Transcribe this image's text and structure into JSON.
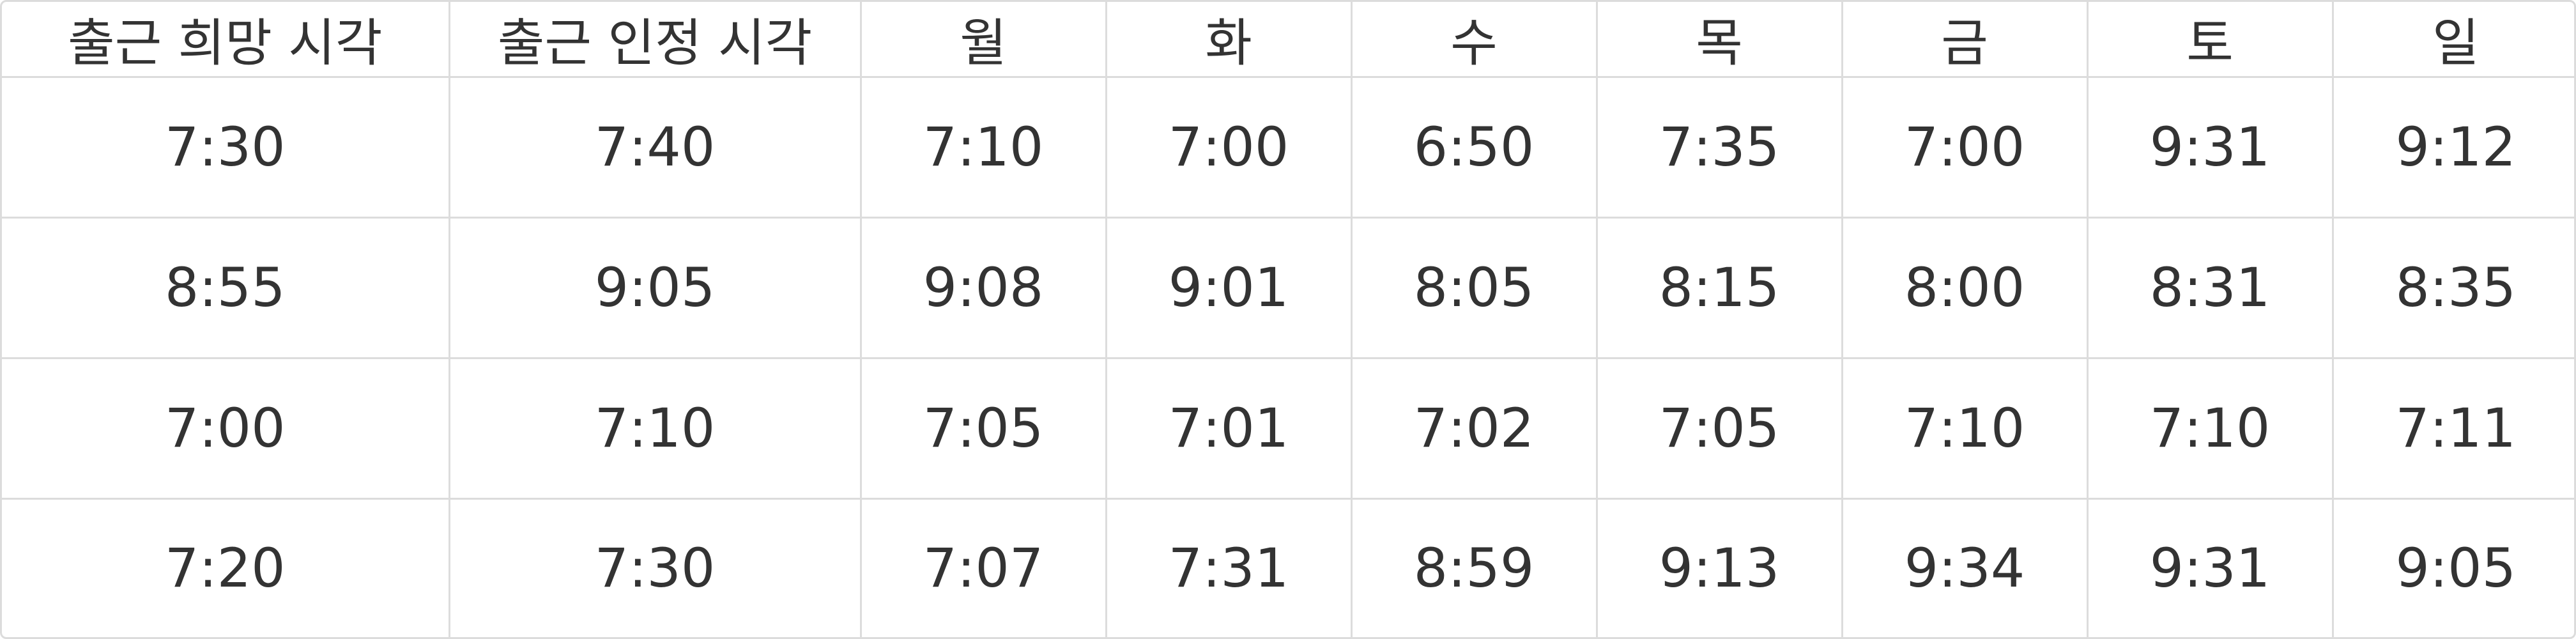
{
  "table": {
    "headers": [
      "출근 희망 시각",
      "출근 인정 시각",
      "월",
      "화",
      "수",
      "목",
      "금",
      "토",
      "일"
    ],
    "rows": [
      [
        "7:30",
        "7:40",
        "7:10",
        "7:00",
        "6:50",
        "7:35",
        "7:00",
        "9:31",
        "9:12"
      ],
      [
        "8:55",
        "9:05",
        "9:08",
        "9:01",
        "8:05",
        "8:15",
        "8:00",
        "8:31",
        "8:35"
      ],
      [
        "7:00",
        "7:10",
        "7:05",
        "7:01",
        "7:02",
        "7:05",
        "7:10",
        "7:10",
        "7:11"
      ],
      [
        "7:20",
        "7:30",
        "7:07",
        "7:31",
        "8:59",
        "9:13",
        "9:34",
        "9:31",
        "9:05"
      ]
    ]
  }
}
